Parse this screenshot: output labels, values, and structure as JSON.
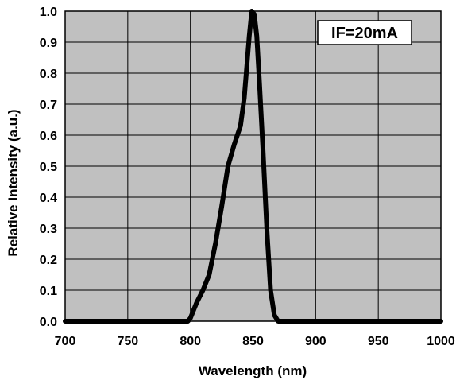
{
  "chart_data": {
    "type": "line",
    "title": "",
    "xlabel": "Wavelength (nm)",
    "ylabel": "Relative Intensity (a.u.)",
    "annotation": "IF=20mA",
    "xlim": [
      700,
      1000
    ],
    "ylim": [
      0,
      1.0
    ],
    "x_ticks": [
      "700",
      "750",
      "800",
      "850",
      "900",
      "950",
      "1000"
    ],
    "y_ticks": [
      "0.0",
      "0.1",
      "0.2",
      "0.3",
      "0.4",
      "0.5",
      "0.6",
      "0.7",
      "0.8",
      "0.9",
      "1.0"
    ],
    "grid": true,
    "plot_background": "#c0c0c0",
    "line_color": "#000000",
    "series": [
      {
        "x": [
          700,
          798,
          800,
          805,
          810,
          815,
          820,
          825,
          830,
          835,
          840,
          843,
          845,
          847,
          849,
          851,
          853,
          855,
          858,
          861,
          864,
          867,
          870,
          872,
          1000
        ],
        "y": [
          0,
          0,
          0.01,
          0.06,
          0.1,
          0.15,
          0.25,
          0.37,
          0.5,
          0.57,
          0.63,
          0.72,
          0.82,
          0.92,
          1.0,
          0.99,
          0.92,
          0.78,
          0.55,
          0.3,
          0.1,
          0.02,
          0,
          0,
          0
        ]
      }
    ]
  }
}
